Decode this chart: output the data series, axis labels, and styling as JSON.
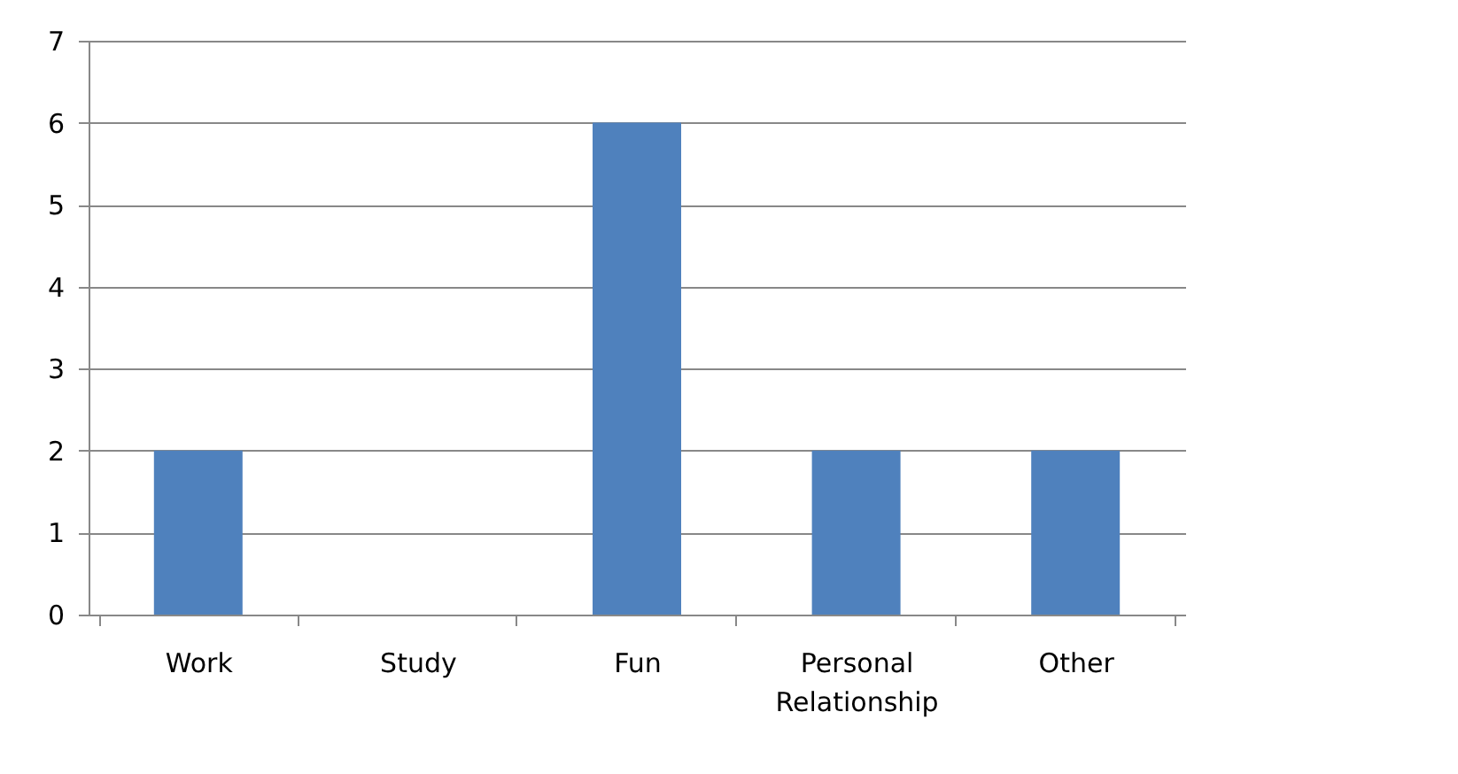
{
  "chart_data": {
    "type": "bar",
    "categories": [
      "Work",
      "Study",
      "Fun",
      "Personal Relationship",
      "Other"
    ],
    "values": [
      2,
      0,
      6,
      2,
      2
    ],
    "color": "#4f81bd",
    "ylim": [
      0,
      7
    ],
    "yticks": [
      0,
      1,
      2,
      3,
      4,
      5,
      6,
      7
    ],
    "grid": "y"
  }
}
